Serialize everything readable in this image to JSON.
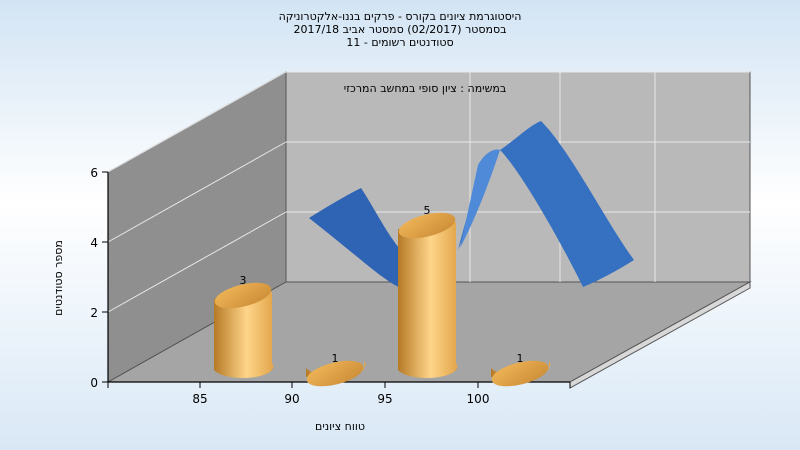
{
  "title_lines": [
    "היסטוגרמת ציונים בקורס - פרקים בננו-אלקטרוניקה",
    "בסמסטר  (02/2017)  סמסטר אביב 2017/18",
    "סטודנטים רשומים - 11"
  ],
  "colors": {
    "bar": "#e2a54a",
    "bar_light": "#ffd58a",
    "bar_dark": "#b57a26",
    "curve": "#3573c4",
    "back_wall": "#b9b9b9",
    "side_wall": "#8f8f8f",
    "floor": "#a5a5a5"
  },
  "chart_data": {
    "type": "bar",
    "subtitle": "במשימה : ציון סופי במחשב המרכזי",
    "xlabel": "טווח ציונים",
    "ylabel": "מספר סטודנטים",
    "categories": [
      "85",
      "90",
      "95",
      "100"
    ],
    "values": [
      3,
      1,
      5,
      1
    ],
    "ylim": [
      0,
      6
    ],
    "yticks": [
      "0",
      "2",
      "4",
      "6"
    ],
    "grid": true,
    "curve": {
      "type": "line",
      "style": "3d-ribbon",
      "shape": "smoothed-distribution"
    }
  }
}
